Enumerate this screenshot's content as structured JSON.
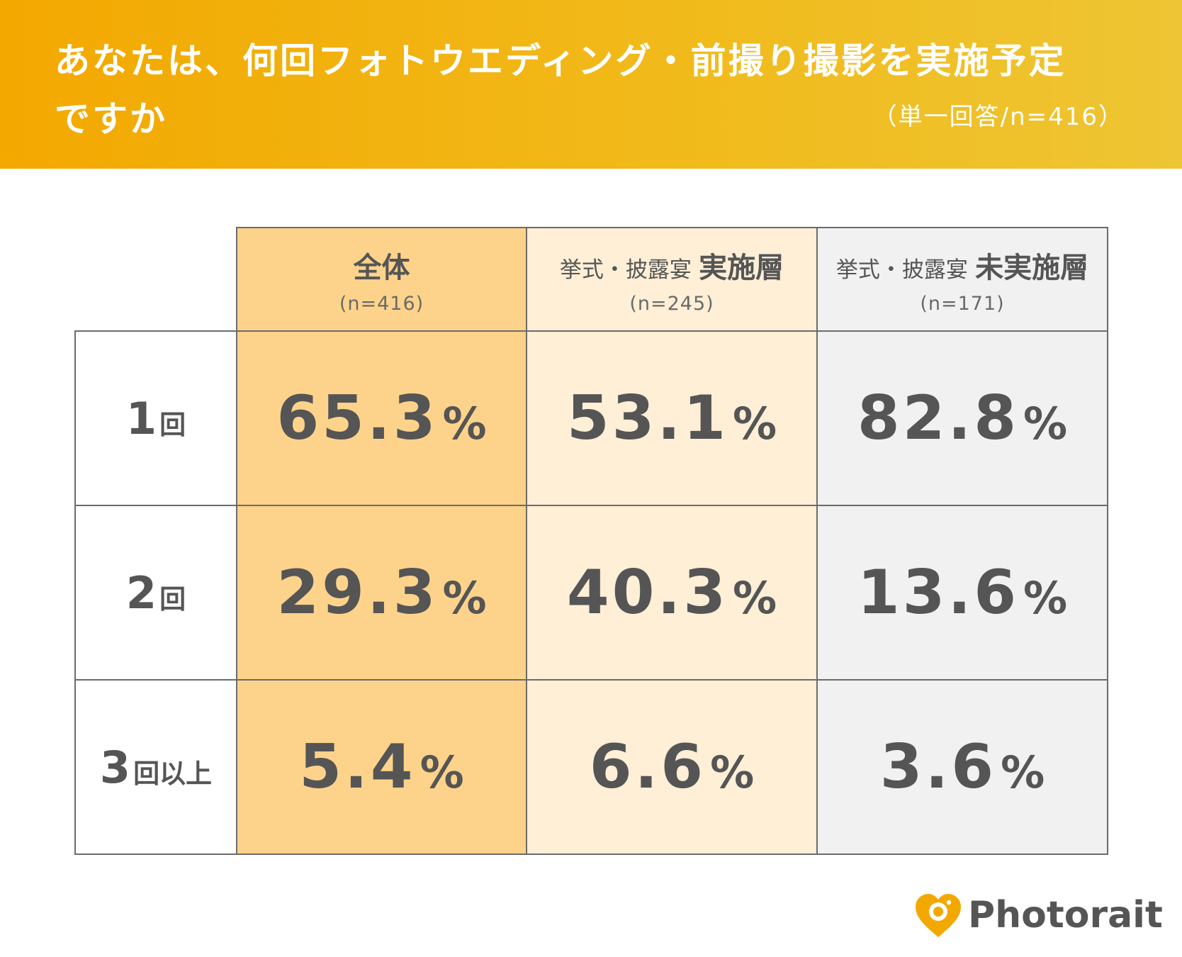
{
  "header": {
    "question_line1": "あなたは、何回フォトウエディング・前撮り撮影を実施予定",
    "question_line2": "ですか",
    "answer_meta": "（単一回答/n=416）"
  },
  "colors": {
    "header_start": "#F3A800",
    "header_end": "#EEC534",
    "col_total": "#FDD38B",
    "col_done": "#FEEFD6",
    "col_none": "#F1F1F1",
    "text": "#555555",
    "logo_accent": "#F3A800"
  },
  "chart_data": {
    "type": "table",
    "columns": [
      {
        "prefix": "",
        "title": "全体",
        "n": "(n=416)"
      },
      {
        "prefix": "挙式・披露宴",
        "title": "実施層",
        "n": "(n=245)"
      },
      {
        "prefix": "挙式・披露宴",
        "title": "未実施層",
        "n": "(n=171)"
      }
    ],
    "rows": [
      {
        "num": "1",
        "unit": "回",
        "values": [
          "65.3",
          "53.1",
          "82.8"
        ]
      },
      {
        "num": "2",
        "unit": "回",
        "values": [
          "29.3",
          "40.3",
          "13.6"
        ]
      },
      {
        "num": "3",
        "unit": "回以上",
        "values": [
          "5.4",
          "6.6",
          "3.6"
        ]
      }
    ],
    "value_unit": "%"
  },
  "brand": {
    "name": "Photorait",
    "icon": "heart-camera-logo-icon"
  }
}
